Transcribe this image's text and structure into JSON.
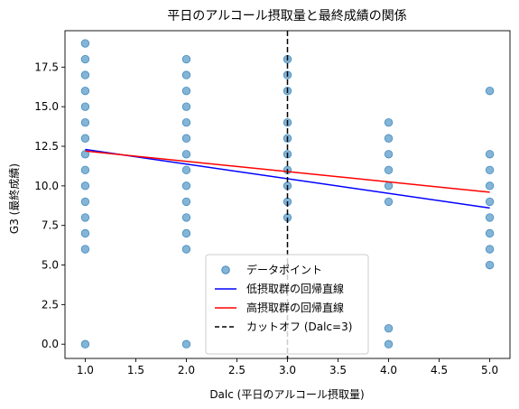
{
  "chart_data": {
    "type": "scatter",
    "title": "平日のアルコール摂取量と最終成績の関係",
    "xlabel": "Dalc (平日のアルコール摂取量)",
    "ylabel": "G3 (最終成績)",
    "xlim": [
      0.8,
      5.2
    ],
    "ylim": [
      -0.9,
      19.8
    ],
    "xticks": [
      1.0,
      1.5,
      2.0,
      2.5,
      3.0,
      3.5,
      4.0,
      4.5,
      5.0
    ],
    "xtick_labels": [
      "1.0",
      "1.5",
      "2.0",
      "2.5",
      "3.0",
      "3.5",
      "4.0",
      "4.5",
      "5.0"
    ],
    "yticks": [
      0.0,
      2.5,
      5.0,
      7.5,
      10.0,
      12.5,
      15.0,
      17.5
    ],
    "ytick_labels": [
      "0.0",
      "2.5",
      "5.0",
      "7.5",
      "10.0",
      "12.5",
      "15.0",
      "17.5"
    ],
    "grid": false,
    "legend_position": "lower-center",
    "series": [
      {
        "name": "データポイント",
        "kind": "scatter",
        "color": "#1f77b4",
        "points": [
          [
            1,
            0
          ],
          [
            1,
            6
          ],
          [
            1,
            7
          ],
          [
            1,
            8
          ],
          [
            1,
            9
          ],
          [
            1,
            10
          ],
          [
            1,
            11
          ],
          [
            1,
            12
          ],
          [
            1,
            13
          ],
          [
            1,
            14
          ],
          [
            1,
            15
          ],
          [
            1,
            16
          ],
          [
            1,
            17
          ],
          [
            1,
            18
          ],
          [
            1,
            19
          ],
          [
            2,
            0
          ],
          [
            2,
            6
          ],
          [
            2,
            7
          ],
          [
            2,
            8
          ],
          [
            2,
            9
          ],
          [
            2,
            10
          ],
          [
            2,
            11
          ],
          [
            2,
            12
          ],
          [
            2,
            13
          ],
          [
            2,
            14
          ],
          [
            2,
            15
          ],
          [
            2,
            16
          ],
          [
            2,
            17
          ],
          [
            2,
            18
          ],
          [
            3,
            8
          ],
          [
            3,
            9
          ],
          [
            3,
            10
          ],
          [
            3,
            11
          ],
          [
            3,
            12
          ],
          [
            3,
            13
          ],
          [
            3,
            14
          ],
          [
            3,
            16
          ],
          [
            3,
            17
          ],
          [
            3,
            18
          ],
          [
            4,
            0
          ],
          [
            4,
            1
          ],
          [
            4,
            9
          ],
          [
            4,
            10
          ],
          [
            4,
            11
          ],
          [
            4,
            12
          ],
          [
            4,
            13
          ],
          [
            4,
            14
          ],
          [
            5,
            5
          ],
          [
            5,
            6
          ],
          [
            5,
            7
          ],
          [
            5,
            8
          ],
          [
            5,
            9
          ],
          [
            5,
            10
          ],
          [
            5,
            11
          ],
          [
            5,
            12
          ],
          [
            5,
            16
          ]
        ]
      },
      {
        "name": "低摂取群の回帰直線",
        "kind": "line",
        "color": "#0000ff",
        "points": [
          [
            1,
            12.3
          ],
          [
            5,
            8.6
          ]
        ]
      },
      {
        "name": "高摂取群の回帰直線",
        "kind": "line",
        "color": "#ff0000",
        "points": [
          [
            1,
            12.2
          ],
          [
            5,
            9.6
          ]
        ]
      },
      {
        "name": "カットオフ (Dalc=3)",
        "kind": "vline",
        "color": "#000000",
        "x": 3.0
      }
    ]
  }
}
